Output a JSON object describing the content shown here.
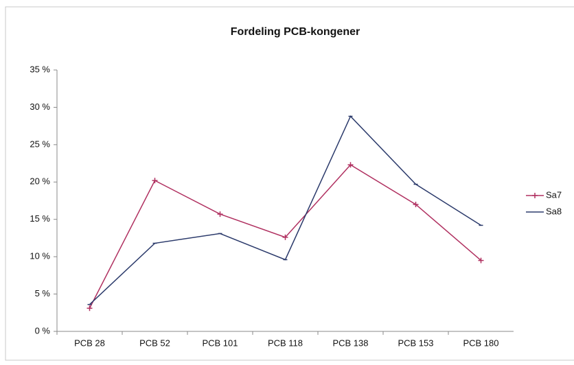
{
  "chart_data": {
    "type": "line",
    "title": "Fordeling PCB-kongener",
    "categories": [
      "PCB 28",
      "PCB 52",
      "PCB 101",
      "PCB 118",
      "PCB 138",
      "PCB 153",
      "PCB 180"
    ],
    "series": [
      {
        "name": "Sa7",
        "color": "#b03060",
        "values": [
          3.1,
          20.2,
          15.7,
          12.6,
          22.3,
          17.0,
          9.5
        ]
      },
      {
        "name": "Sa8",
        "color": "#2b3a6b",
        "values": [
          3.6,
          11.8,
          13.1,
          9.6,
          28.8,
          19.7,
          14.2
        ]
      }
    ],
    "ylim": [
      0,
      35
    ],
    "yticks": [
      {
        "value": 0,
        "label": "0 %"
      },
      {
        "value": 5,
        "label": "5 %"
      },
      {
        "value": 10,
        "label": "10 %"
      },
      {
        "value": 15,
        "label": "15 %"
      },
      {
        "value": 20,
        "label": "20 %"
      },
      {
        "value": 25,
        "label": "25 %"
      },
      {
        "value": 30,
        "label": "30 %"
      },
      {
        "value": 35,
        "label": "35 %"
      }
    ],
    "grid": false,
    "legend": "right"
  }
}
